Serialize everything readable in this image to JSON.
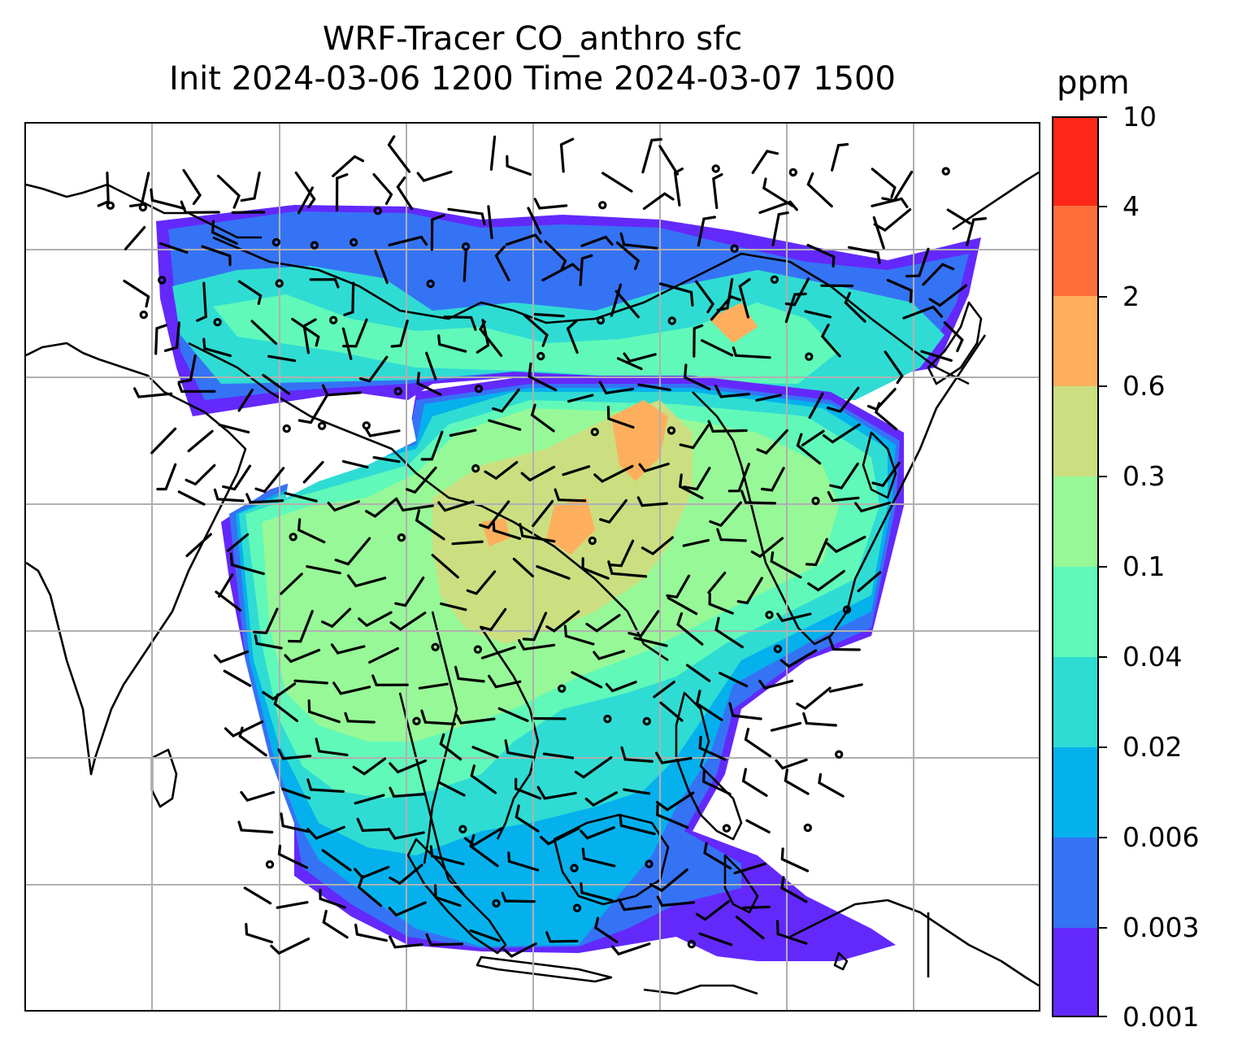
{
  "title": {
    "line1": "WRF-Tracer CO_anthro sfc",
    "line2": "Init 2024-03-06 1200 Time 2024-03-07 1500"
  },
  "colorbar": {
    "units": "ppm",
    "levels": [
      "0.001",
      "0.003",
      "0.006",
      "0.02",
      "0.04",
      "0.1",
      "0.3",
      "0.6",
      "2",
      "4",
      "10"
    ],
    "colors": [
      "#6329fb",
      "#3573f5",
      "#05b1ec",
      "#2fdcd3",
      "#60f9b9",
      "#97f897",
      "#cbdf81",
      "#feaf5d",
      "#fe6e3b",
      "#fd2818"
    ]
  },
  "map": {
    "gridlines": "on",
    "coastlines": "on",
    "wind_barbs": "on",
    "gridline_color": "#b0b0b0",
    "background": "#ffffff"
  }
}
